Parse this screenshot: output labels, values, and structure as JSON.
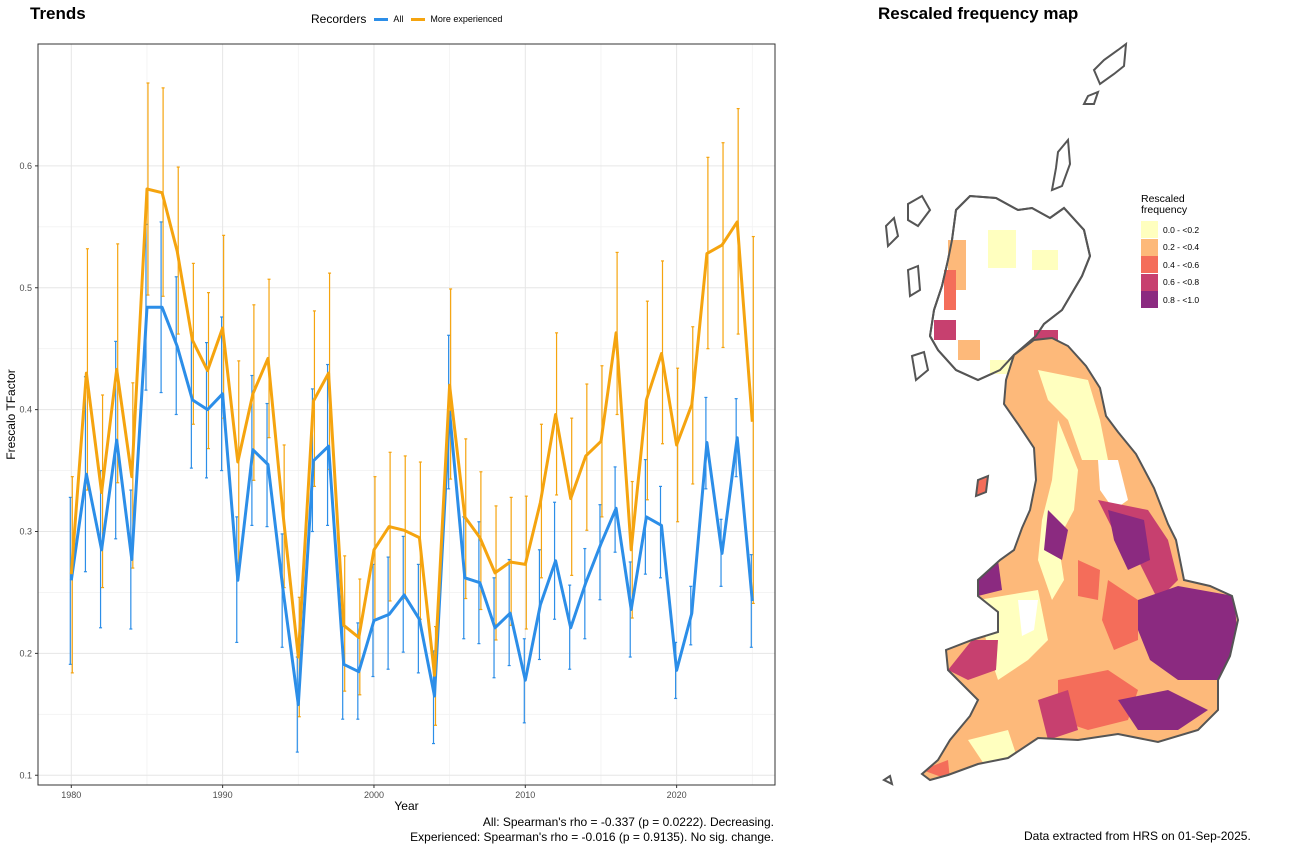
{
  "trends_panel": {
    "title": "Trends",
    "legend_title": "Recorders",
    "stats_all": "All: Spearman's rho = -0.337 (p = 0.0222). Decreasing.",
    "stats_experienced": "Experienced: Spearman's rho = -0.016 (p = 0.9135). No sig. change."
  },
  "map_panel": {
    "title": "Rescaled frequency map",
    "legend_title_line1": "Rescaled",
    "legend_title_line2": "frequency",
    "legend_items": [
      {
        "label": "0.0 - <0.2",
        "color": "#ffffbf"
      },
      {
        "label": "0.2 - <0.4",
        "color": "#fdb97a"
      },
      {
        "label": "0.4 - <0.6",
        "color": "#f46d5a"
      },
      {
        "label": "0.6 - <0.8",
        "color": "#c7406f"
      },
      {
        "label": "0.8 - <1.0",
        "color": "#8b2a80"
      }
    ],
    "footer": "Data extracted from HRS on 01-Sep-2025."
  },
  "chart_data": {
    "type": "line",
    "xlabel": "Year",
    "ylabel": "Frescalo TFactor",
    "xlim": [
      1977.8,
      2026.5
    ],
    "ylim": [
      0.092,
      0.7
    ],
    "xticks": [
      1980,
      1990,
      2000,
      2010,
      2020
    ],
    "yticks": [
      0.1,
      0.2,
      0.3,
      0.4,
      0.5,
      0.6
    ],
    "grid": true,
    "legend_position": "top",
    "x": [
      1980,
      1981,
      1982,
      1983,
      1984,
      1985,
      1986,
      1987,
      1988,
      1989,
      1990,
      1991,
      1992,
      1993,
      1994,
      1995,
      1996,
      1997,
      1998,
      1999,
      2000,
      2001,
      2002,
      2003,
      2004,
      2005,
      2006,
      2007,
      2008,
      2009,
      2010,
      2011,
      2012,
      2013,
      2014,
      2015,
      2016,
      2017,
      2018,
      2019,
      2020,
      2021,
      2022,
      2023,
      2024,
      2025
    ],
    "series": [
      {
        "name": "All",
        "color": "#2c8ee8",
        "values": [
          0.26,
          0.347,
          0.285,
          0.375,
          0.277,
          0.484,
          0.484,
          0.452,
          0.408,
          0.4,
          0.413,
          0.26,
          0.367,
          0.355,
          0.251,
          0.158,
          0.358,
          0.37,
          0.191,
          0.185,
          0.227,
          0.232,
          0.248,
          0.228,
          0.165,
          0.398,
          0.262,
          0.258,
          0.221,
          0.233,
          0.178,
          0.24,
          0.276,
          0.221,
          0.258,
          0.29,
          0.319,
          0.236,
          0.312,
          0.305,
          0.186,
          0.233,
          0.373,
          0.282,
          0.377,
          0.243
        ],
        "lower": [
          0.191,
          0.267,
          0.221,
          0.294,
          0.22,
          0.416,
          0.414,
          0.396,
          0.352,
          0.344,
          0.35,
          0.209,
          0.305,
          0.304,
          0.205,
          0.119,
          0.3,
          0.305,
          0.146,
          0.146,
          0.181,
          0.187,
          0.201,
          0.184,
          0.126,
          0.335,
          0.212,
          0.208,
          0.18,
          0.19,
          0.143,
          0.195,
          0.228,
          0.187,
          0.212,
          0.244,
          0.283,
          0.197,
          0.265,
          0.262,
          0.163,
          0.207,
          0.335,
          0.255,
          0.345,
          0.205
        ],
        "upper": [
          0.328,
          0.427,
          0.35,
          0.456,
          0.334,
          0.552,
          0.554,
          0.509,
          0.463,
          0.455,
          0.476,
          0.312,
          0.428,
          0.405,
          0.298,
          0.197,
          0.417,
          0.437,
          0.236,
          0.225,
          0.273,
          0.279,
          0.296,
          0.273,
          0.202,
          0.461,
          0.312,
          0.308,
          0.262,
          0.277,
          0.212,
          0.285,
          0.324,
          0.256,
          0.286,
          0.322,
          0.353,
          0.275,
          0.359,
          0.337,
          0.209,
          0.255,
          0.41,
          0.31,
          0.409,
          0.281
        ]
      },
      {
        "name": "More experienced",
        "color": "#f5a40f",
        "values": [
          0.265,
          0.43,
          0.332,
          0.433,
          0.345,
          0.581,
          0.578,
          0.53,
          0.457,
          0.432,
          0.467,
          0.357,
          0.413,
          0.442,
          0.313,
          0.197,
          0.407,
          0.43,
          0.223,
          0.213,
          0.285,
          0.304,
          0.301,
          0.295,
          0.182,
          0.42,
          0.312,
          0.295,
          0.266,
          0.275,
          0.273,
          0.324,
          0.396,
          0.327,
          0.362,
          0.374,
          0.463,
          0.285,
          0.408,
          0.446,
          0.371,
          0.404,
          0.528,
          0.535,
          0.554,
          0.39
        ],
        "lower": [
          0.184,
          0.334,
          0.254,
          0.34,
          0.27,
          0.494,
          0.493,
          0.462,
          0.388,
          0.368,
          0.393,
          0.274,
          0.342,
          0.377,
          0.254,
          0.148,
          0.337,
          0.351,
          0.169,
          0.166,
          0.227,
          0.243,
          0.245,
          0.228,
          0.141,
          0.343,
          0.245,
          0.236,
          0.211,
          0.223,
          0.22,
          0.262,
          0.33,
          0.264,
          0.301,
          0.312,
          0.396,
          0.229,
          0.326,
          0.372,
          0.308,
          0.339,
          0.45,
          0.451,
          0.462,
          0.241
        ],
        "upper": [
          0.345,
          0.532,
          0.412,
          0.536,
          0.422,
          0.668,
          0.664,
          0.599,
          0.52,
          0.496,
          0.543,
          0.44,
          0.486,
          0.507,
          0.371,
          0.246,
          0.481,
          0.512,
          0.28,
          0.261,
          0.345,
          0.365,
          0.362,
          0.357,
          0.222,
          0.499,
          0.376,
          0.349,
          0.321,
          0.328,
          0.329,
          0.388,
          0.463,
          0.393,
          0.421,
          0.436,
          0.529,
          0.341,
          0.489,
          0.522,
          0.434,
          0.468,
          0.607,
          0.619,
          0.647,
          0.542
        ]
      }
    ]
  }
}
